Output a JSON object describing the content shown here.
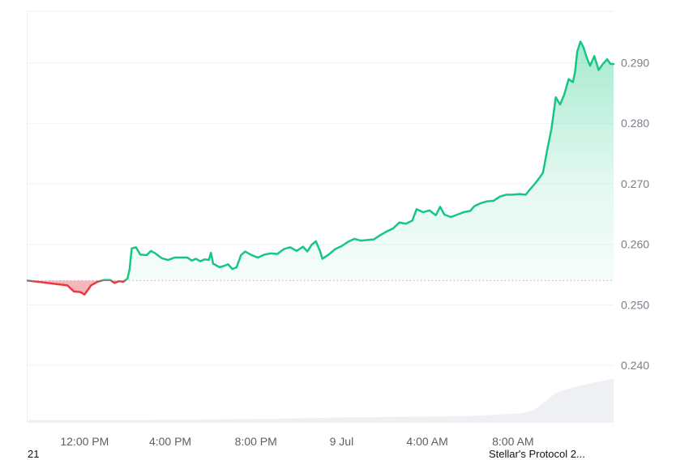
{
  "chart_data": {
    "type": "area",
    "title": "",
    "xlabel": "",
    "ylabel": "",
    "baseline": 0.254,
    "ylim": [
      0.2305,
      0.2985
    ],
    "y_ticks": [
      0.24,
      0.25,
      0.26,
      0.27,
      0.28,
      0.29
    ],
    "y_tick_labels": [
      "0.240",
      "0.250",
      "0.260",
      "0.270",
      "0.280",
      "0.290"
    ],
    "x_ticks": [
      {
        "label": "12:00 PM",
        "t": 1.0
      },
      {
        "label": "4:00 PM",
        "t": 5.0
      },
      {
        "label": "8:00 PM",
        "t": 9.0
      },
      {
        "label": "9 Jul",
        "t": 13.0
      },
      {
        "label": "4:00 AM",
        "t": 17.0
      },
      {
        "label": "8:00 AM",
        "t": 21.0
      }
    ],
    "x_unit": "hours after 11:00 AM",
    "colors": {
      "up": "#16c784",
      "down": "#ea3943",
      "volume": "#eef0f3",
      "grid": "#eff2f5"
    },
    "series": [
      {
        "values": [
          [
            0.0,
            0.254
          ],
          [
            0.2,
            0.2532
          ],
          [
            0.5,
            0.2522
          ],
          [
            0.8,
            0.2521
          ],
          [
            1.0,
            0.2517
          ],
          [
            1.3,
            0.2532
          ],
          [
            1.6,
            0.2538
          ],
          [
            1.9,
            0.2541
          ],
          [
            2.2,
            0.2541
          ],
          [
            2.4,
            0.2536
          ],
          [
            2.6,
            0.2539
          ],
          [
            2.8,
            0.2538
          ],
          [
            3.0,
            0.2543
          ],
          [
            3.1,
            0.2558
          ],
          [
            3.2,
            0.2593
          ],
          [
            3.4,
            0.2595
          ],
          [
            3.6,
            0.2583
          ],
          [
            3.9,
            0.2582
          ],
          [
            4.1,
            0.2589
          ],
          [
            4.3,
            0.2585
          ],
          [
            4.6,
            0.2577
          ],
          [
            4.9,
            0.2574
          ],
          [
            5.2,
            0.2578
          ],
          [
            5.5,
            0.2578
          ],
          [
            5.8,
            0.2578
          ],
          [
            6.0,
            0.2573
          ],
          [
            6.2,
            0.2576
          ],
          [
            6.4,
            0.2572
          ],
          [
            6.6,
            0.2575
          ],
          [
            6.8,
            0.2574
          ],
          [
            6.9,
            0.2586
          ],
          [
            7.0,
            0.2568
          ],
          [
            7.3,
            0.2562
          ],
          [
            7.5,
            0.2564
          ],
          [
            7.7,
            0.2567
          ],
          [
            7.9,
            0.2559
          ],
          [
            8.1,
            0.2562
          ],
          [
            8.3,
            0.2582
          ],
          [
            8.5,
            0.2588
          ],
          [
            8.8,
            0.2582
          ],
          [
            9.1,
            0.2578
          ],
          [
            9.4,
            0.2583
          ],
          [
            9.7,
            0.2585
          ],
          [
            10.0,
            0.2584
          ],
          [
            10.3,
            0.2592
          ],
          [
            10.6,
            0.2595
          ],
          [
            10.9,
            0.2589
          ],
          [
            11.2,
            0.2596
          ],
          [
            11.4,
            0.2588
          ],
          [
            11.6,
            0.2599
          ],
          [
            11.8,
            0.2605
          ],
          [
            12.0,
            0.2588
          ],
          [
            12.1,
            0.2576
          ],
          [
            12.4,
            0.2583
          ],
          [
            12.7,
            0.2592
          ],
          [
            13.0,
            0.2597
          ],
          [
            13.3,
            0.2604
          ],
          [
            13.6,
            0.2609
          ],
          [
            13.9,
            0.2606
          ],
          [
            14.2,
            0.2607
          ],
          [
            14.5,
            0.2608
          ],
          [
            14.8,
            0.2615
          ],
          [
            15.1,
            0.2621
          ],
          [
            15.4,
            0.2626
          ],
          [
            15.7,
            0.2636
          ],
          [
            16.0,
            0.2634
          ],
          [
            16.3,
            0.2639
          ],
          [
            16.5,
            0.2658
          ],
          [
            16.8,
            0.2653
          ],
          [
            17.1,
            0.2656
          ],
          [
            17.4,
            0.2648
          ],
          [
            17.6,
            0.2662
          ],
          [
            17.8,
            0.2649
          ],
          [
            18.1,
            0.2645
          ],
          [
            18.4,
            0.2649
          ],
          [
            18.7,
            0.2653
          ],
          [
            19.0,
            0.2655
          ],
          [
            19.2,
            0.2663
          ],
          [
            19.5,
            0.2668
          ],
          [
            19.8,
            0.2671
          ],
          [
            20.1,
            0.2672
          ],
          [
            20.4,
            0.2679
          ],
          [
            20.7,
            0.2682
          ],
          [
            21.0,
            0.2682
          ],
          [
            21.3,
            0.2683
          ],
          [
            21.6,
            0.2682
          ],
          [
            21.8,
            0.2691
          ],
          [
            22.0,
            0.2699
          ],
          [
            22.2,
            0.2708
          ],
          [
            22.4,
            0.2718
          ],
          [
            22.6,
            0.2756
          ],
          [
            22.8,
            0.2791
          ],
          [
            23.0,
            0.2843
          ],
          [
            23.2,
            0.2831
          ],
          [
            23.4,
            0.2848
          ],
          [
            23.6,
            0.2873
          ],
          [
            23.8,
            0.2868
          ],
          [
            23.9,
            0.2885
          ],
          [
            24.0,
            0.2918
          ],
          [
            24.15,
            0.2935
          ],
          [
            24.3,
            0.2925
          ],
          [
            24.45,
            0.2908
          ],
          [
            24.6,
            0.2895
          ],
          [
            24.8,
            0.2911
          ],
          [
            25.0,
            0.2888
          ],
          [
            25.2,
            0.2898
          ],
          [
            25.4,
            0.2906
          ],
          [
            25.55,
            0.2898
          ],
          [
            25.7,
            0.2898
          ]
        ]
      }
    ],
    "volume": [
      [
        0.0,
        0.04
      ],
      [
        3.5,
        0.04
      ],
      [
        7.0,
        0.05
      ],
      [
        10.0,
        0.06
      ],
      [
        13.0,
        0.08
      ],
      [
        16.0,
        0.09
      ],
      [
        19.0,
        0.1
      ],
      [
        21.3,
        0.14
      ],
      [
        22.0,
        0.19
      ],
      [
        22.5,
        0.32
      ],
      [
        23.0,
        0.45
      ],
      [
        24.0,
        0.55
      ],
      [
        25.0,
        0.62
      ],
      [
        25.7,
        0.66
      ]
    ]
  },
  "footer": {
    "left_text": "21",
    "right_text": "Stellar's Protocol 2..."
  }
}
